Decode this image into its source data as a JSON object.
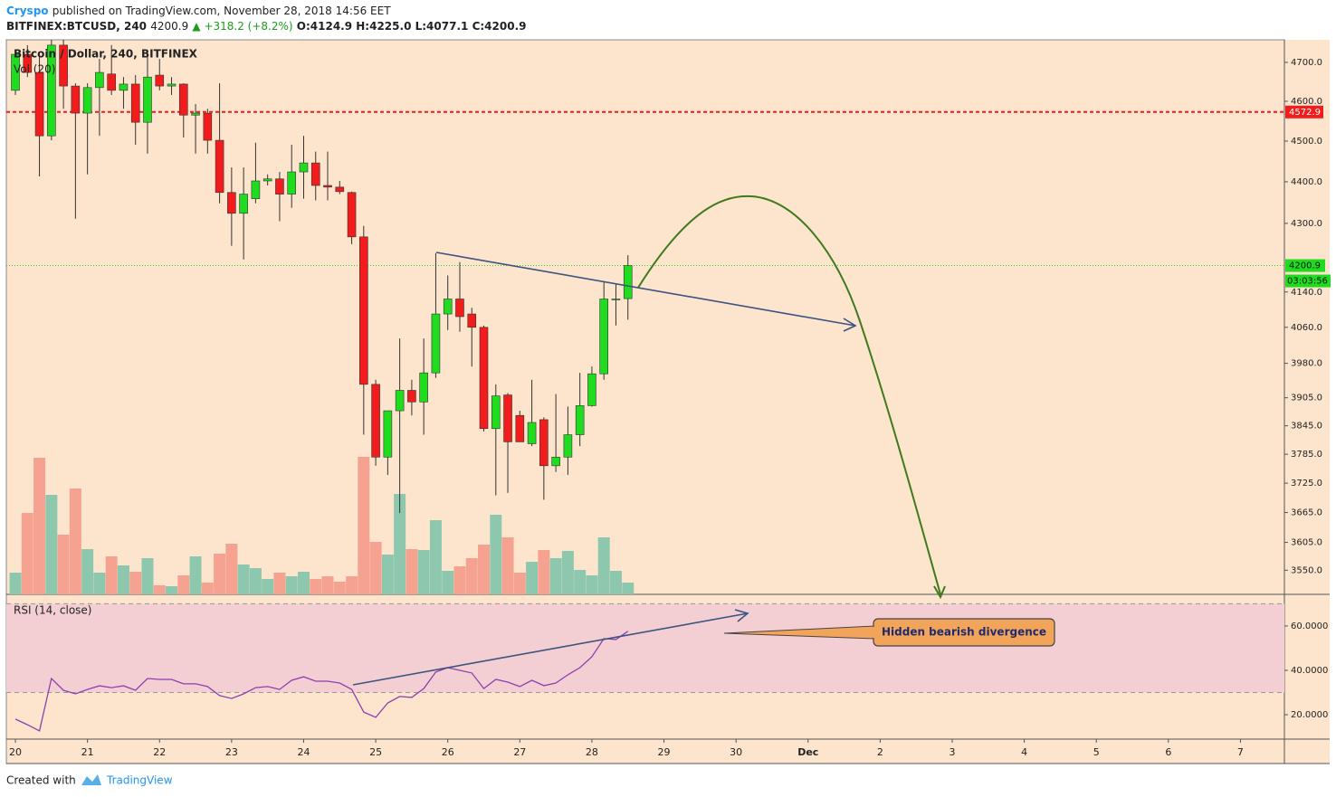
{
  "header": {
    "author": "Cryspo",
    "published": "published on TradingView.com, November 28, 2018 14:56 EET",
    "symbol": "BITFINEX:BTCUSD, 240",
    "last": "4200.9",
    "change": "▲ +318.2 (+8.2%)",
    "open": "O:4124.9",
    "high": "H:4225.0",
    "low": "L:4077.1",
    "close": "C:4200.9"
  },
  "footer": {
    "created": "Created with",
    "brand": "TradingView"
  },
  "chart_data": {
    "type": "candlestick",
    "title": "Bitcoin / Dollar, 240, BITFINEX",
    "up_color": "#1fdc1f",
    "down_color": "#f21c1c",
    "x": [
      20,
      20.1667,
      20.3333,
      20.5,
      20.6667,
      20.8333,
      21,
      21.1667,
      21.3333,
      21.5,
      21.6667,
      21.8333,
      22,
      22.1667,
      22.3333,
      22.5,
      22.6667,
      22.8333,
      23,
      23.1667,
      23.3333,
      23.5,
      23.6667,
      23.8333,
      24,
      24.1667,
      24.3333,
      24.5,
      24.6667,
      24.8333,
      25,
      25.1667,
      25.3333,
      25.5,
      25.6667,
      25.8333,
      26,
      26.1667,
      26.3333,
      26.5,
      26.6667,
      26.8333,
      27,
      27.1667,
      27.3333,
      27.5,
      27.6667,
      27.8333,
      28,
      28.1667,
      28.3333,
      28.5
    ],
    "open": [
      4628,
      4721,
      4674,
      4513,
      4745,
      4639,
      4570,
      4635,
      4670,
      4628,
      4644,
      4547,
      4667,
      4639,
      4644,
      4565,
      4570,
      4502,
      4374,
      4324,
      4359,
      4402,
      4407,
      4370,
      4424,
      4446,
      4391,
      4387,
      4374,
      4268,
      3934,
      3779,
      3877,
      3921,
      3896,
      3959,
      4090,
      4124,
      4090,
      4060,
      3839,
      3911,
      3867,
      3807,
      3858,
      3761,
      3779,
      3826,
      3888,
      3957,
      4124,
      4124.9
    ],
    "high": [
      4733,
      4745,
      4721,
      4759,
      4759,
      4646,
      4646,
      4709,
      4745,
      4662,
      4667,
      4721,
      4709,
      4662,
      4646,
      4593,
      4581,
      4646,
      4435,
      4435,
      4496,
      4418,
      4424,
      4491,
      4513,
      4474,
      4474,
      4402,
      4376,
      4294,
      3944,
      3877,
      4035,
      3944,
      4035,
      4230,
      4178,
      4209,
      4104,
      4064,
      3934,
      3915,
      3877,
      3944,
      3863,
      3913,
      3886,
      3959,
      3973,
      4162,
      4158,
      4225
    ],
    "low": [
      4616,
      4662,
      4413,
      4502,
      4581,
      4311,
      4418,
      4513,
      4616,
      4581,
      4491,
      4469,
      4628,
      4616,
      4509,
      4469,
      4469,
      4348,
      4247,
      4215,
      4348,
      4391,
      4305,
      4337,
      4359,
      4355,
      4355,
      4370,
      4251,
      3826,
      3761,
      3742,
      3664,
      3867,
      3826,
      3948,
      4054,
      4050,
      3973,
      3833,
      3700,
      3705,
      3811,
      3802,
      3691,
      3748,
      3742,
      3802,
      3886,
      3944,
      4064,
      4077.1
    ],
    "close": [
      4721,
      4674,
      4513,
      4745,
      4639,
      4570,
      4635,
      4674,
      4628,
      4644,
      4547,
      4662,
      4639,
      4644,
      4565,
      4570,
      4502,
      4374,
      4324,
      4370,
      4402,
      4407,
      4370,
      4424,
      4446,
      4391,
      4387,
      4376,
      4268,
      3934,
      3779,
      3877,
      3921,
      3896,
      3959,
      4090,
      4124,
      4084,
      4060,
      3839,
      3909,
      3811,
      3811,
      3852,
      3761,
      3779,
      3826,
      3888,
      3957,
      4124,
      4124,
      4200.9
    ],
    "ylim": [
      3503,
      4759
    ],
    "log_scale": true,
    "grid": false,
    "yticks": [
      {
        "value": 4700,
        "label": "4700.0"
      },
      {
        "value": 4600,
        "label": "4600.0"
      },
      {
        "value": 4500,
        "label": "4500.0"
      },
      {
        "value": 4400,
        "label": "4400.0"
      },
      {
        "value": 4300,
        "label": "4300.0"
      },
      {
        "value": 4140,
        "label": "4140.0"
      },
      {
        "value": 4060,
        "label": "4060.0"
      },
      {
        "value": 3980,
        "label": "3980.0"
      },
      {
        "value": 3905,
        "label": "3905.0"
      },
      {
        "value": 3845,
        "label": "3845.0"
      },
      {
        "value": 3785,
        "label": "3785.0"
      },
      {
        "value": 3725,
        "label": "3725.0"
      },
      {
        "value": 3665,
        "label": "3665.0"
      },
      {
        "value": 3605,
        "label": "3605.0"
      },
      {
        "value": 3550,
        "label": "3550.0"
      }
    ],
    "xlim": [
      19.874,
      37.61
    ],
    "xticks": [
      20,
      21,
      22,
      23,
      24,
      25,
      26,
      27,
      28,
      29,
      30,
      {
        "value": 31,
        "label": "Dec"
      },
      {
        "value": 32,
        "label": "2"
      },
      {
        "value": 33,
        "label": "3"
      },
      {
        "value": 34,
        "label": "4"
      },
      {
        "value": 35,
        "label": "5"
      },
      {
        "value": 36,
        "label": "6"
      },
      {
        "value": 37,
        "label": "7"
      }
    ],
    "hline": {
      "value": 4572.9,
      "color": "#f21c1c"
    },
    "countdown": "03:03:56",
    "volume": {
      "name": "Vol (20)",
      "up_color": "#8dc8ae",
      "down_color": "#f5a291",
      "lim": [
        0,
        200
      ],
      "values": [
        24,
        90,
        151,
        110,
        66,
        117,
        50,
        24,
        42,
        32,
        25,
        40,
        10,
        9,
        21,
        42,
        13,
        45,
        56,
        33,
        29,
        17,
        24,
        20,
        25,
        17,
        20,
        14,
        20,
        152,
        58,
        44,
        111,
        50,
        49,
        82,
        26,
        31,
        40,
        55,
        88,
        63,
        24,
        36,
        49,
        40,
        48,
        27,
        21,
        63,
        26,
        13
      ]
    },
    "rsi": {
      "name": "RSI (14, close)",
      "color": "#8e3fb0",
      "ylim": [
        9,
        72.2
      ],
      "band": [
        30,
        70
      ],
      "yticks": [
        {
          "value": 60,
          "label": "60.0000"
        },
        {
          "value": 40,
          "label": "40.0000"
        },
        {
          "value": 20,
          "label": "20.0000"
        }
      ],
      "values": [
        18,
        15.5,
        12.7,
        36.3,
        31,
        29.4,
        31.4,
        33,
        32.2,
        33,
        31,
        36.3,
        35.9,
        35.9,
        33.9,
        33.9,
        32.7,
        28.6,
        27.3,
        29.4,
        32.2,
        32.7,
        31.4,
        35.5,
        37.1,
        35.1,
        35.1,
        34.3,
        31.4,
        21.2,
        18.8,
        25.3,
        28.2,
        27.8,
        31.8,
        39.2,
        41.2,
        40,
        38.8,
        31.8,
        35.9,
        34.7,
        32.7,
        35.5,
        33.1,
        34.3,
        38,
        41.2,
        46.1,
        54.3,
        53.9,
        57.6
      ]
    },
    "annotation": "Hidden bearish divergence"
  }
}
